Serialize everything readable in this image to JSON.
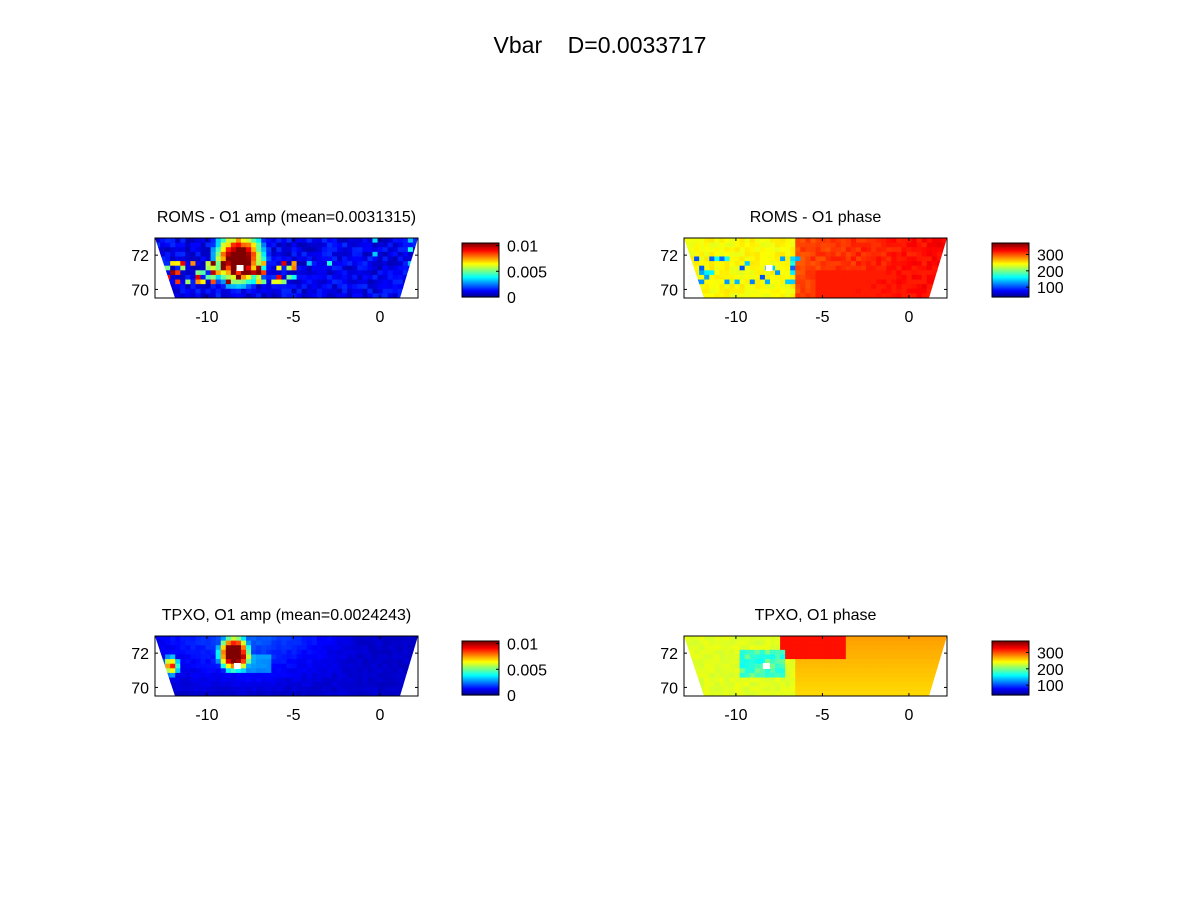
{
  "figure": {
    "suptitle": "Vbar    D=0.0033717"
  },
  "chart_data": [
    {
      "type": "heatmap",
      "title": "ROMS - O1 amp (mean=0.0031315)",
      "xlabel": "",
      "ylabel": "",
      "xlim": [
        -13,
        2.2
      ],
      "ylim": [
        69.5,
        73.0
      ],
      "xticks": [
        "-10",
        "-5",
        "0"
      ],
      "yticks": [
        "70",
        "72"
      ],
      "colorbar": {
        "min": 0,
        "max": 0.0105,
        "ticks": [
          "0",
          "0.005",
          "0.01"
        ],
        "colormap": "jet"
      },
      "field": "amplitude",
      "variant": "roms",
      "mean": 0.0031315
    },
    {
      "type": "heatmap",
      "title": "ROMS - O1 phase",
      "xlabel": "",
      "ylabel": "",
      "xlim": [
        -13,
        2.2
      ],
      "ylim": [
        69.5,
        73.0
      ],
      "xticks": [
        "-10",
        "-5",
        "0"
      ],
      "yticks": [
        "70",
        "72"
      ],
      "colorbar": {
        "min": 40,
        "max": 370,
        "ticks": [
          "100",
          "200",
          "300"
        ],
        "colormap": "jet"
      },
      "field": "phase",
      "variant": "roms"
    },
    {
      "type": "heatmap",
      "title": "TPXO, O1 amp (mean=0.0024243)",
      "xlabel": "",
      "ylabel": "",
      "xlim": [
        -13,
        2.2
      ],
      "ylim": [
        69.5,
        73.0
      ],
      "xticks": [
        "-10",
        "-5",
        "0"
      ],
      "yticks": [
        "70",
        "72"
      ],
      "colorbar": {
        "min": 0,
        "max": 0.0105,
        "ticks": [
          "0",
          "0.005",
          "0.01"
        ],
        "colormap": "jet"
      },
      "field": "amplitude",
      "variant": "tpxo",
      "mean": 0.0024243
    },
    {
      "type": "heatmap",
      "title": "TPXO, O1 phase",
      "xlabel": "",
      "ylabel": "",
      "xlim": [
        -13,
        2.2
      ],
      "ylim": [
        69.5,
        73.0
      ],
      "xticks": [
        "-10",
        "-5",
        "0"
      ],
      "yticks": [
        "70",
        "72"
      ],
      "colorbar": {
        "min": 40,
        "max": 370,
        "ticks": [
          "100",
          "200",
          "300"
        ],
        "colormap": "jet"
      },
      "field": "phase",
      "variant": "tpxo"
    }
  ]
}
